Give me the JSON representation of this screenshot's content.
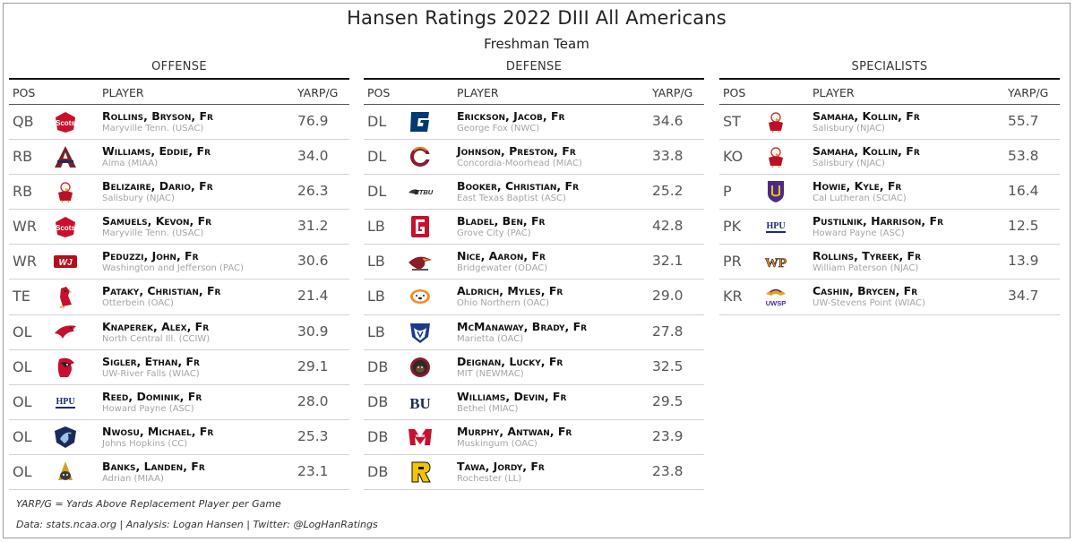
{
  "title": "Hansen Ratings 2022 DIII All Americans",
  "subtitle": "Freshman Team",
  "columns": {
    "pos": "POS",
    "player": "PLAYER",
    "yarp": "YARP/G"
  },
  "sections": {
    "offense": {
      "label": "OFFENSE",
      "rows": [
        {
          "pos": "QB",
          "player": "Rollins, Bryson, Fr",
          "school": "Maryville Tenn. (USAC)",
          "yarp": "76.9",
          "logo_icon": "maryville-scots-logo"
        },
        {
          "pos": "RB",
          "player": "Williams, Eddie, Fr",
          "school": "Alma (MIAA)",
          "yarp": "34.0",
          "logo_icon": "alma-a-logo"
        },
        {
          "pos": "RB",
          "player": "Belizaire, Dario, Fr",
          "school": "Salisbury (NJAC)",
          "yarp": "26.3",
          "logo_icon": "salisbury-gull-logo"
        },
        {
          "pos": "WR",
          "player": "Samuels, Kevon, Fr",
          "school": "Maryville Tenn. (USAC)",
          "yarp": "31.2",
          "logo_icon": "maryville-scots-logo"
        },
        {
          "pos": "WR",
          "player": "Peduzzi, John, Fr",
          "school": "Washington and Jefferson (PAC)",
          "yarp": "30.6",
          "logo_icon": "wj-logo"
        },
        {
          "pos": "TE",
          "player": "Pataky, Christian, Fr",
          "school": "Otterbein (OAC)",
          "yarp": "21.4",
          "logo_icon": "otterbein-cardinal-logo"
        },
        {
          "pos": "OL",
          "player": "Knaperek, Alex, Fr",
          "school": "North Central Ill. (CCIW)",
          "yarp": "30.9",
          "logo_icon": "north-central-cardinal-logo"
        },
        {
          "pos": "OL",
          "player": "Sigler, Ethan, Fr",
          "school": "UW-River Falls (WIAC)",
          "yarp": "29.1",
          "logo_icon": "river-falls-falcon-logo"
        },
        {
          "pos": "OL",
          "player": "Reed, Dominik, Fr",
          "school": "Howard Payne (ASC)",
          "yarp": "28.0",
          "logo_icon": "hpu-logo"
        },
        {
          "pos": "OL",
          "player": "Nwosu, Michael, Fr",
          "school": "Johns Hopkins (CC)",
          "yarp": "25.3",
          "logo_icon": "johns-hopkins-jay-logo"
        },
        {
          "pos": "OL",
          "player": "Banks, Landen, Fr",
          "school": "Adrian (MIAA)",
          "yarp": "23.1",
          "logo_icon": "adrian-bulldog-logo"
        }
      ]
    },
    "defense": {
      "label": "DEFENSE",
      "rows": [
        {
          "pos": "DL",
          "player": "Erickson, Jacob, Fr",
          "school": "George Fox (NWC)",
          "yarp": "34.6",
          "logo_icon": "george-fox-g-logo"
        },
        {
          "pos": "DL",
          "player": "Johnson, Preston, Fr",
          "school": "Concordia-Moorhead (MIAC)",
          "yarp": "33.8",
          "logo_icon": "concordia-c-logo"
        },
        {
          "pos": "DL",
          "player": "Booker, Christian, Fr",
          "school": "East Texas Baptist (ASC)",
          "yarp": "25.2",
          "logo_icon": "etbu-logo"
        },
        {
          "pos": "LB",
          "player": "Bladel, Ben, Fr",
          "school": "Grove City (PAC)",
          "yarp": "42.8",
          "logo_icon": "grove-city-g-logo"
        },
        {
          "pos": "LB",
          "player": "Nice, Aaron, Fr",
          "school": "Bridgewater (ODAC)",
          "yarp": "32.1",
          "logo_icon": "bridgewater-eagle-logo"
        },
        {
          "pos": "LB",
          "player": "Aldrich, Myles, Fr",
          "school": "Ohio Northern (OAC)",
          "yarp": "29.0",
          "logo_icon": "ohio-northern-polar-bear-logo"
        },
        {
          "pos": "LB",
          "player": "McManaway, Brady, Fr",
          "school": "Marietta (OAC)",
          "yarp": "27.8",
          "logo_icon": "marietta-pioneer-logo"
        },
        {
          "pos": "DB",
          "player": "Deignan, Lucky, Fr",
          "school": "MIT (NEWMAC)",
          "yarp": "32.5",
          "logo_icon": "mit-beaver-logo"
        },
        {
          "pos": "DB",
          "player": "Williams, Devin, Fr",
          "school": "Bethel (MIAC)",
          "yarp": "29.5",
          "logo_icon": "bethel-bu-logo"
        },
        {
          "pos": "DB",
          "player": "Murphy, Antwan, Fr",
          "school": "Muskingum (OAC)",
          "yarp": "23.9",
          "logo_icon": "muskingum-m-logo"
        },
        {
          "pos": "DB",
          "player": "Tawa, Jordy, Fr",
          "school": "Rochester (LL)",
          "yarp": "23.8",
          "logo_icon": "rochester-r-logo"
        }
      ]
    },
    "specialists": {
      "label": "SPECIALISTS",
      "rows": [
        {
          "pos": "ST",
          "player": "Samaha, Kollin, Fr",
          "school": "Salisbury (NJAC)",
          "yarp": "55.7",
          "logo_icon": "salisbury-gull-logo"
        },
        {
          "pos": "KO",
          "player": "Samaha, Kollin, Fr",
          "school": "Salisbury (NJAC)",
          "yarp": "53.8",
          "logo_icon": "salisbury-gull-logo"
        },
        {
          "pos": "P",
          "player": "Howie, Kyle, Fr",
          "school": "Cal Lutheran (SCIAC)",
          "yarp": "16.4",
          "logo_icon": "cal-lutheran-shield-logo"
        },
        {
          "pos": "PK",
          "player": "Pustilnik, Harrison, Fr",
          "school": "Howard Payne (ASC)",
          "yarp": "12.5",
          "logo_icon": "hpu-logo"
        },
        {
          "pos": "PR",
          "player": "Rollins, Tyreek, Fr",
          "school": "William Paterson (NJAC)",
          "yarp": "13.9",
          "logo_icon": "wp-logo"
        },
        {
          "pos": "KR",
          "player": "Cashin, Brycen, Fr",
          "school": "UW-Stevens Point (WIAC)",
          "yarp": "34.7",
          "logo_icon": "uwsp-logo"
        }
      ]
    }
  },
  "footnotes": {
    "definition": "YARP/G = Yards Above Replacement Player per Game",
    "credits": "Data: stats.ncaa.org | Analysis: Logan Hansen | Twitter: @LogHanRatings"
  },
  "colors": {
    "title_text": "#222222",
    "school_text": "#a5a5a5",
    "row_divider": "#d2d2d2",
    "header_rule": "#111111"
  }
}
